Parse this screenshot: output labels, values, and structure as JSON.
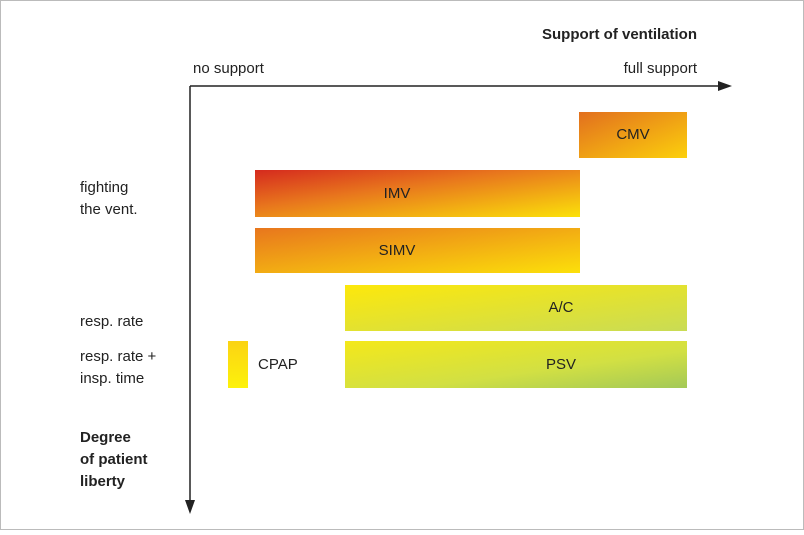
{
  "axes": {
    "x_title": "Support of ventilation",
    "x_start": "no support",
    "x_end": "full support",
    "y_title": [
      "Degree",
      "of patient",
      "liberty"
    ]
  },
  "row_labels": [
    [
      "fighting",
      "the vent."
    ],
    [
      "resp. rate"
    ],
    [
      "resp. rate +",
      "insp. time"
    ]
  ],
  "modes": [
    "CMV",
    "IMV",
    "SIMV",
    "A/C",
    "PSV",
    "CPAP"
  ]
}
